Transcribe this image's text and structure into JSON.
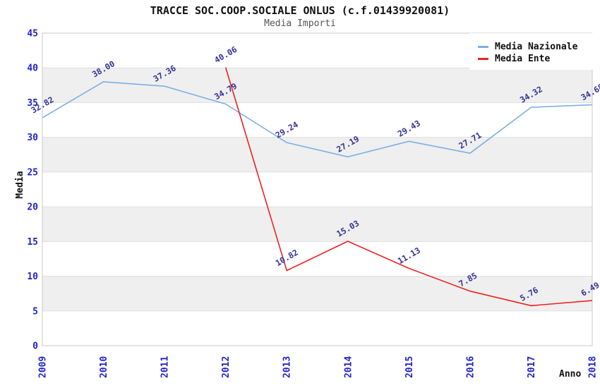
{
  "header": {
    "title": "TRACCE SOC.COOP.SOCIALE ONLUS (c.f.01439920081)",
    "subtitle": "Media Importi"
  },
  "chart_data": {
    "type": "line",
    "title": "TRACCE SOC.COOP.SOCIALE ONLUS (c.f.01439920081)",
    "subtitle": "Media Importi",
    "xlabel": "Anno",
    "ylabel": "Media",
    "categories": [
      "2009",
      "2010",
      "2011",
      "2012",
      "2013",
      "2014",
      "2015",
      "2016",
      "2017",
      "2018"
    ],
    "series": [
      {
        "name": "Media Nazionale",
        "color": "#7cb0e2",
        "values": [
          32.82,
          38.0,
          37.36,
          34.79,
          29.24,
          27.19,
          29.43,
          27.71,
          34.32,
          34.68
        ]
      },
      {
        "name": "Media Ente",
        "color": "#ee2222",
        "values": [
          null,
          null,
          null,
          40.06,
          10.82,
          15.03,
          11.13,
          7.85,
          5.76,
          6.49
        ]
      }
    ],
    "ylim": [
      0,
      45
    ],
    "ytick_step": 5,
    "grid": "horizontal-bands-alternating",
    "legend_position": "top-right",
    "data_label_decimals": 2,
    "colors": {
      "tick_labels": "#2323cc",
      "data_labels": "#333399",
      "band": "#efefef",
      "gridline": "#e0e0e0",
      "plot_border": "#c9c9c9",
      "title_text": "#111111",
      "subtitle_text": "#555555"
    }
  }
}
